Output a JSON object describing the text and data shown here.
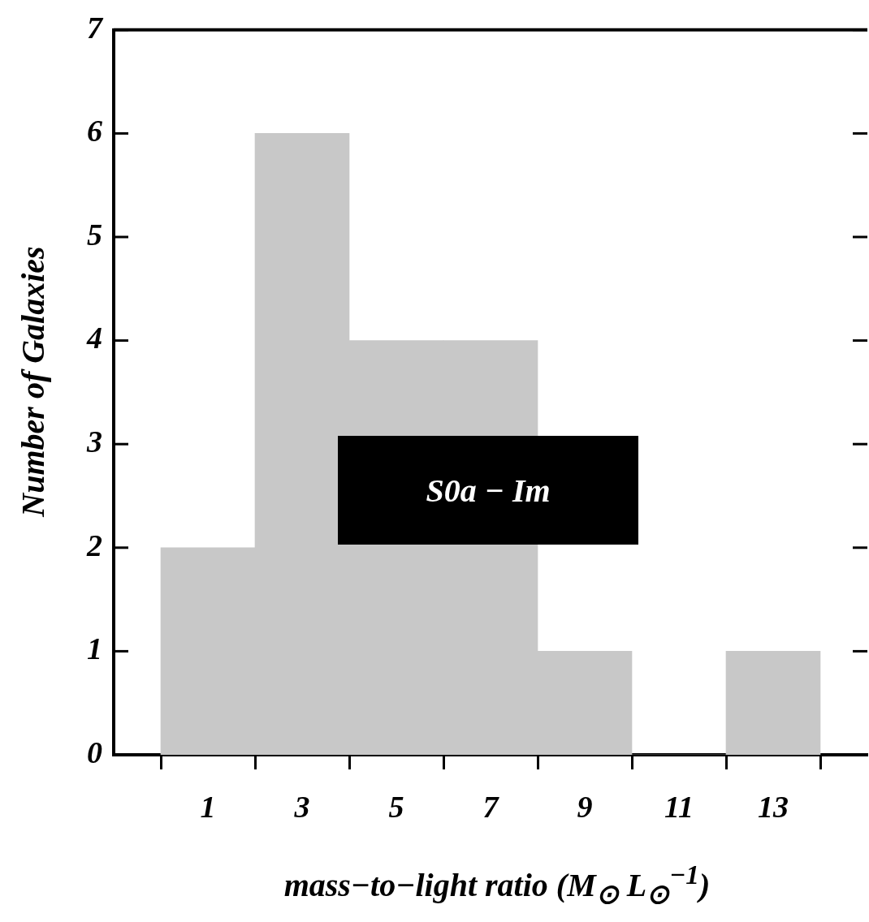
{
  "chart_data": {
    "type": "histogram",
    "xlabel": "mass−to−light ratio (M$_{⊙}$ L$_{⊙}$$^{−1}$)",
    "ylabel": "Number of Galaxies",
    "annotations": [
      "S0a − Im"
    ],
    "bins": [
      0,
      2,
      4,
      6,
      8,
      10,
      12,
      14
    ],
    "values": [
      2,
      6,
      4,
      4,
      1,
      0,
      1
    ],
    "color": "#c8c8c8",
    "xlim": [
      -1,
      15
    ],
    "xticks": [
      {
        "value": -1,
        "label": null
      },
      1,
      3,
      5,
      7,
      9,
      11,
      13
    ],
    "ylim": [
      0,
      7
    ],
    "yticks": [
      0,
      1,
      2,
      3,
      4,
      5,
      6,
      7
    ],
    "grid": false,
    "legend": false
  }
}
